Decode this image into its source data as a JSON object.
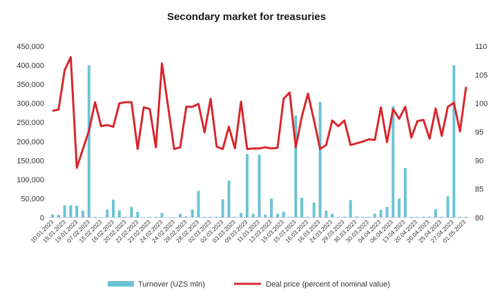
{
  "chart_data": {
    "type": "bar+line",
    "title": "Secondary market for treasuries",
    "x_labels": [
      "10.01.2023",
      "19.01.2023",
      "19.01.2023",
      "07.02.2023",
      "15.02.2023",
      "16.02.2023",
      "20.02.2023",
      "22.02.2023",
      "23.02.2023",
      "24.02.2023",
      "24.02.2023",
      "28.02.2023",
      "28.02.2023",
      "02.03.2023",
      "02.03.2023",
      "03.03.2023",
      "09.03.2023",
      "11.03.2023",
      "13.03.2023",
      "15.03.2023",
      "15.03.2023",
      "16.03.2023",
      "16.03.2023",
      "24.03.2023",
      "29.03.2023",
      "30.03.2023",
      "30.03.2023",
      "04.04.2023",
      "06.04.2023",
      "13.04.2023",
      "20.04.2023",
      "20.04.2023",
      "25.04.2023",
      "27.04.2023",
      "01.05.2023"
    ],
    "left_axis": {
      "min": 0,
      "max": 450000,
      "step": 50000,
      "ticks": [
        "0",
        "50,000",
        "100,000",
        "150,000",
        "200,000",
        "250,000",
        "300,000",
        "350,000",
        "400,000",
        "450,000"
      ]
    },
    "right_axis": {
      "min": 80,
      "max": 110,
      "step": 5,
      "ticks": [
        "80",
        "85",
        "90",
        "95",
        "100",
        "105",
        "110"
      ]
    },
    "series": [
      {
        "name": "Turnover (UZS mln)",
        "type": "bar",
        "axis": "left",
        "color": "#6cc3d5",
        "values": [
          8000,
          7000,
          32000,
          32000,
          31000,
          18000,
          400000,
          2000,
          1000,
          21000,
          47000,
          19000,
          2000,
          28000,
          15000,
          1000,
          1000,
          2000,
          12000,
          1000,
          1000,
          10000,
          3000,
          21000,
          70000,
          2000,
          2000,
          2000,
          48000,
          97000,
          2000,
          12000,
          167000,
          10000,
          165000,
          8000,
          50000,
          10000,
          15000,
          2000,
          268000,
          52000,
          2000,
          39000,
          304000,
          18000,
          10000,
          2000,
          2000,
          46000,
          3000,
          2000,
          2000,
          10000,
          20000,
          28000,
          293000,
          50000,
          130000,
          2000,
          2000,
          2000,
          2000,
          22000,
          2000,
          56000,
          400000,
          2000,
          2000
        ]
      },
      {
        "name": "Deal price (percent of nominal value)",
        "type": "line",
        "axis": "right",
        "color": "#d7262b",
        "values": [
          98.7,
          98.9,
          105.8,
          108.1,
          88.7,
          92.0,
          95.2,
          100.2,
          96.0,
          96.2,
          95.9,
          100.0,
          100.2,
          100.2,
          92.0,
          99.3,
          99.0,
          92.3,
          107.0,
          99.5,
          92.0,
          92.3,
          99.4,
          99.4,
          99.9,
          94.9,
          100.8,
          92.4,
          92.0,
          95.9,
          92.1,
          100.3,
          92.0,
          92.1,
          92.1,
          92.3,
          92.1,
          92.2,
          100.8,
          101.9,
          92.3,
          97.7,
          101.7,
          97.0,
          92.0,
          92.7,
          97.0,
          96.0,
          97.0,
          92.7,
          93.0,
          93.3,
          93.7,
          93.6,
          99.3,
          93.2,
          99.0,
          97.3,
          99.4,
          94.0,
          96.9,
          97.1,
          93.8,
          99.1,
          94.3,
          99.4,
          100.1,
          95.1,
          102.9
        ]
      }
    ],
    "legend": {
      "position": "bottom",
      "items": [
        {
          "label": "Turnover (UZS mln)",
          "kind": "bar",
          "color": "#6cc3d5"
        },
        {
          "label": "Deal price (percent of nominal value)",
          "kind": "line",
          "color": "#d7262b"
        }
      ]
    }
  }
}
